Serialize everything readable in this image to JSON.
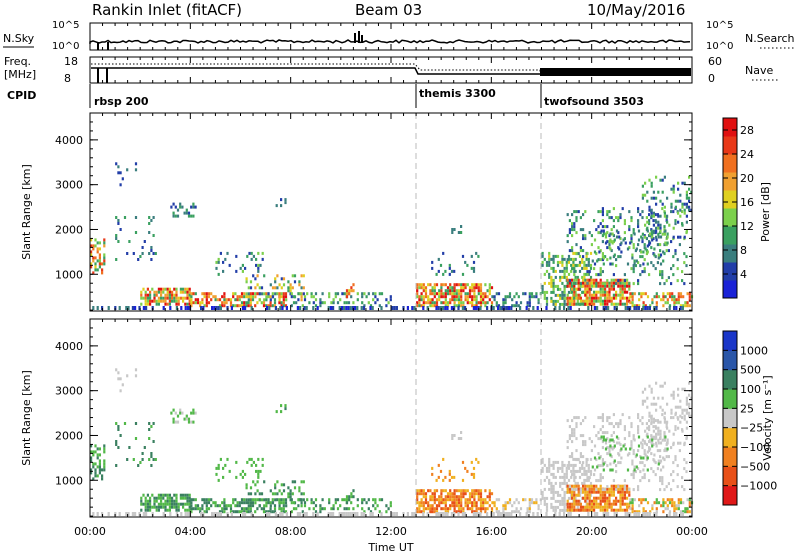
{
  "header": {
    "station": "Rankin Inlet (fitACF)",
    "beam": "Beam 03",
    "date": "10/May/2016"
  },
  "top_panel": {
    "nsky_label": "N.Sky",
    "nsearch_label": "N.Search",
    "freq_label_1": "Freq.",
    "freq_label_2": "[MHz]",
    "nave_label": "Nave",
    "cpid_label": "CPID",
    "nsky_ticks": [
      "10^5",
      "10^0"
    ],
    "nsearch_ticks": [
      "10^5",
      "10^0"
    ],
    "freq_ticks": [
      "18",
      "8"
    ],
    "nave_ticks": [
      "60",
      "0"
    ],
    "cpid_segments": [
      {
        "name": "rbsp 200",
        "start_hour": 0
      },
      {
        "name": "themis 3300",
        "start_hour": 13
      },
      {
        "name": "twofsound 3503",
        "start_hour": 18
      }
    ]
  },
  "time_axis": {
    "label": "Time UT",
    "tick_labels": [
      "00:00",
      "04:00",
      "08:00",
      "12:00",
      "16:00",
      "20:00",
      "00:00"
    ],
    "tick_hours": [
      0,
      4,
      8,
      12,
      16,
      20,
      24
    ]
  },
  "chart_data": [
    {
      "type": "heatmap",
      "name": "power",
      "ylabel": "Slant Range [km]",
      "ylim": [
        180,
        4600
      ],
      "xlim_hours": [
        0,
        24
      ],
      "y_tick_labels": [
        "1000",
        "2000",
        "3000",
        "4000"
      ],
      "y_tick_values": [
        1000,
        2000,
        3000,
        4000
      ],
      "colorbar_label": "Power [dB]",
      "colorbar_ticks": [
        "4",
        "8",
        "12",
        "16",
        "20",
        "24",
        "28"
      ],
      "colorbar_tick_values": [
        4,
        8,
        12,
        16,
        20,
        24,
        28
      ],
      "colorbar_range": [
        0,
        30
      ],
      "colorbar_colors": [
        "#1a22d6",
        "#223ea8",
        "#3a7e7e",
        "#3aa060",
        "#7cd04c",
        "#e0d020",
        "#f0a030",
        "#f07020",
        "#e83818",
        "#e01010"
      ],
      "dashed_vlines_hours": [
        13,
        18
      ]
    },
    {
      "type": "heatmap",
      "name": "velocity",
      "ylabel": "Slant Range [km]",
      "ylim": [
        180,
        4600
      ],
      "xlim_hours": [
        0,
        24
      ],
      "y_tick_labels": [
        "1000",
        "2000",
        "3000",
        "4000"
      ],
      "y_tick_values": [
        1000,
        2000,
        3000,
        4000
      ],
      "colorbar_label": "Velocity [m s⁻¹]",
      "colorbar_ticks": [
        "1000",
        "500",
        "100",
        "25",
        "−25",
        "−100",
        "−500",
        "−1000"
      ],
      "colorbar_colors": [
        "#1a36c8",
        "#2a56a8",
        "#3a8060",
        "#52b848",
        "#c8c8c8",
        "#f0b020",
        "#f08020",
        "#e85018",
        "#e01818"
      ],
      "dashed_vlines_hours": [
        13,
        18
      ]
    }
  ]
}
